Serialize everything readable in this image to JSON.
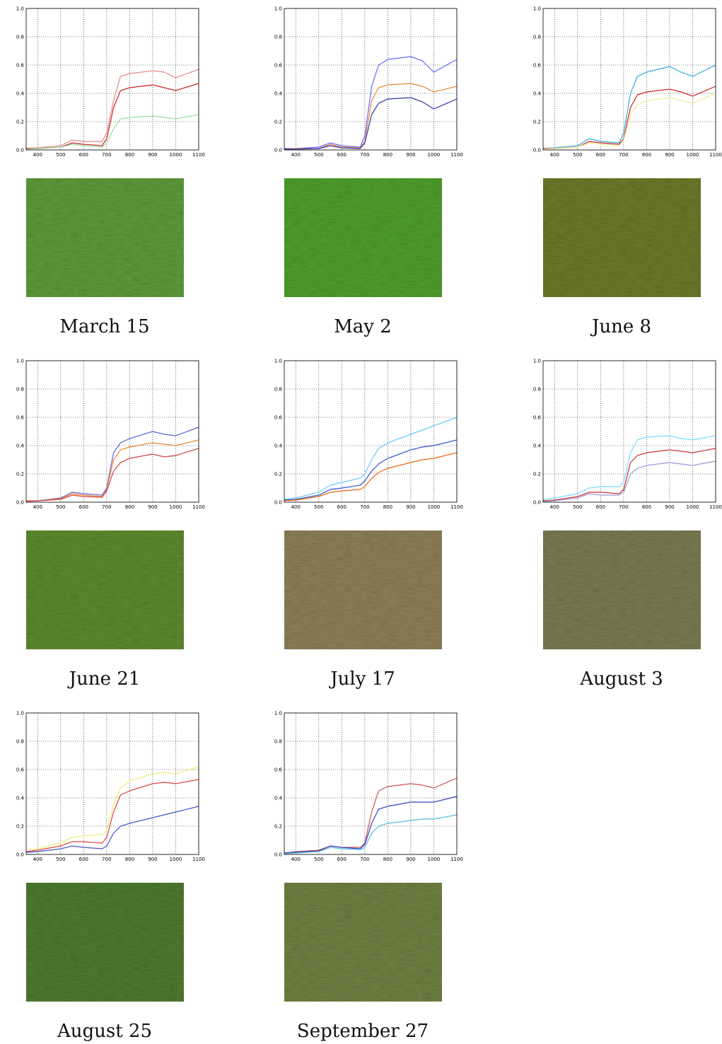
{
  "chart_data": [
    {
      "type": "line",
      "caption": "March 15",
      "x": [
        350,
        400,
        500,
        550,
        600,
        680,
        700,
        730,
        760,
        800,
        900,
        950,
        1000,
        1100
      ],
      "xlim": [
        350,
        1100
      ],
      "ylim": [
        0,
        1
      ],
      "xticks": [
        400,
        500,
        600,
        700,
        800,
        900,
        1000,
        1100
      ],
      "yticks": [
        {
          "value": 0,
          "label": "0.0"
        },
        0.2,
        0.4,
        0.6,
        0.8,
        {
          "value": 1,
          "label": "1.0"
        }
      ],
      "grid": true,
      "series": [
        {
          "color": "#e88888",
          "values": [
            0.01,
            0.015,
            0.03,
            0.07,
            0.06,
            0.06,
            0.12,
            0.35,
            0.52,
            0.54,
            0.56,
            0.55,
            0.51,
            0.57
          ]
        },
        {
          "color": "#cc2222",
          "values": [
            0.01,
            0.01,
            0.02,
            0.05,
            0.04,
            0.03,
            0.08,
            0.3,
            0.42,
            0.44,
            0.46,
            0.44,
            0.42,
            0.47
          ]
        },
        {
          "color": "#99dd99",
          "values": [
            0.005,
            0.01,
            0.02,
            0.04,
            0.03,
            0.02,
            0.05,
            0.15,
            0.22,
            0.23,
            0.24,
            0.23,
            0.22,
            0.25
          ]
        }
      ]
    },
    {
      "type": "line",
      "caption": "May 2",
      "x": [
        350,
        400,
        500,
        550,
        600,
        680,
        700,
        730,
        760,
        800,
        900,
        950,
        1000,
        1100
      ],
      "xlim": [
        350,
        1100
      ],
      "ylim": [
        0,
        1
      ],
      "xticks": [
        400,
        500,
        600,
        700,
        800,
        900,
        1000,
        1100
      ],
      "yticks": [
        {
          "value": 0,
          "label": "0.0"
        },
        0.2,
        0.4,
        0.6,
        0.8,
        {
          "value": 1,
          "label": "1.0"
        }
      ],
      "grid": true,
      "series": [
        {
          "color": "#6666ff",
          "values": [
            0.01,
            0.01,
            0.02,
            0.05,
            0.03,
            0.02,
            0.1,
            0.45,
            0.6,
            0.64,
            0.66,
            0.63,
            0.55,
            0.64
          ]
        },
        {
          "color": "#ee8833",
          "values": [
            0.005,
            0.01,
            0.01,
            0.04,
            0.02,
            0.015,
            0.06,
            0.35,
            0.44,
            0.46,
            0.47,
            0.45,
            0.41,
            0.45
          ]
        },
        {
          "color": "#3333aa",
          "values": [
            0.005,
            0.005,
            0.01,
            0.03,
            0.015,
            0.01,
            0.05,
            0.25,
            0.33,
            0.36,
            0.37,
            0.34,
            0.29,
            0.36
          ]
        }
      ]
    },
    {
      "type": "line",
      "caption": "June 8",
      "x": [
        350,
        400,
        500,
        550,
        600,
        680,
        700,
        730,
        760,
        800,
        900,
        950,
        1000,
        1100
      ],
      "xlim": [
        350,
        1100
      ],
      "ylim": [
        0,
        1
      ],
      "xticks": [
        400,
        500,
        600,
        700,
        800,
        900,
        1000,
        1100
      ],
      "yticks": [
        {
          "value": 0,
          "label": "0.0"
        },
        0.2,
        0.4,
        0.6,
        0.8,
        {
          "value": 1,
          "label": "1.0"
        }
      ],
      "grid": true,
      "series": [
        {
          "color": "#33aadd",
          "values": [
            0.01,
            0.015,
            0.03,
            0.08,
            0.06,
            0.05,
            0.12,
            0.4,
            0.52,
            0.55,
            0.59,
            0.55,
            0.52,
            0.6
          ]
        },
        {
          "color": "#cc2222",
          "values": [
            0.01,
            0.01,
            0.02,
            0.06,
            0.05,
            0.04,
            0.08,
            0.3,
            0.39,
            0.41,
            0.43,
            0.41,
            0.38,
            0.45
          ]
        },
        {
          "color": "#eeee99",
          "values": [
            0.005,
            0.01,
            0.02,
            0.05,
            0.04,
            0.03,
            0.07,
            0.25,
            0.32,
            0.35,
            0.37,
            0.35,
            0.33,
            0.4
          ]
        }
      ]
    },
    {
      "type": "line",
      "caption": "June 21",
      "x": [
        350,
        400,
        500,
        550,
        600,
        680,
        700,
        730,
        760,
        800,
        900,
        950,
        1000,
        1100
      ],
      "xlim": [
        350,
        1100
      ],
      "ylim": [
        0,
        1
      ],
      "xticks": [
        400,
        500,
        600,
        700,
        800,
        900,
        1000,
        1100
      ],
      "yticks": [
        {
          "value": 0,
          "label": "0.0"
        },
        0.2,
        0.4,
        0.6,
        0.8,
        {
          "value": 1,
          "label": "1.0"
        }
      ],
      "grid": true,
      "series": [
        {
          "color": "#5566dd",
          "values": [
            0.01,
            0.01,
            0.03,
            0.07,
            0.06,
            0.05,
            0.1,
            0.35,
            0.42,
            0.45,
            0.5,
            0.48,
            0.47,
            0.53
          ]
        },
        {
          "color": "#ee8833",
          "values": [
            0.01,
            0.01,
            0.025,
            0.06,
            0.05,
            0.04,
            0.09,
            0.3,
            0.37,
            0.39,
            0.42,
            0.41,
            0.4,
            0.44
          ]
        },
        {
          "color": "#cc4444",
          "values": [
            0.005,
            0.01,
            0.02,
            0.05,
            0.04,
            0.035,
            0.08,
            0.22,
            0.28,
            0.31,
            0.34,
            0.32,
            0.33,
            0.38
          ]
        }
      ]
    },
    {
      "type": "line",
      "caption": "July 17",
      "x": [
        350,
        400,
        500,
        550,
        600,
        680,
        700,
        730,
        760,
        800,
        900,
        950,
        1000,
        1100
      ],
      "xlim": [
        350,
        1100
      ],
      "ylim": [
        0,
        1
      ],
      "xticks": [
        400,
        500,
        600,
        700,
        800,
        900,
        1000,
        1100
      ],
      "yticks": [
        {
          "value": 0,
          "label": "0.0"
        },
        0.2,
        0.4,
        0.6,
        0.8,
        {
          "value": 1,
          "label": "1.0"
        }
      ],
      "grid": true,
      "series": [
        {
          "color": "#66ccff",
          "values": [
            0.02,
            0.03,
            0.07,
            0.12,
            0.14,
            0.17,
            0.2,
            0.3,
            0.38,
            0.42,
            0.48,
            0.51,
            0.54,
            0.6
          ]
        },
        {
          "color": "#3355cc",
          "values": [
            0.015,
            0.02,
            0.05,
            0.09,
            0.1,
            0.12,
            0.15,
            0.22,
            0.27,
            0.31,
            0.37,
            0.39,
            0.4,
            0.44
          ]
        },
        {
          "color": "#ee6611",
          "values": [
            0.01,
            0.015,
            0.04,
            0.07,
            0.08,
            0.09,
            0.11,
            0.17,
            0.21,
            0.24,
            0.28,
            0.3,
            0.31,
            0.35
          ]
        }
      ]
    },
    {
      "type": "line",
      "caption": "August 3",
      "x": [
        350,
        400,
        500,
        550,
        600,
        680,
        700,
        730,
        760,
        800,
        900,
        950,
        1000,
        1100
      ],
      "xlim": [
        350,
        1100
      ],
      "ylim": [
        0,
        1
      ],
      "xticks": [
        400,
        500,
        600,
        700,
        800,
        900,
        1000,
        1100
      ],
      "yticks": [
        {
          "value": 0,
          "label": "0.0"
        },
        0.2,
        0.4,
        0.6,
        0.8,
        {
          "value": 1,
          "label": "1.0"
        }
      ],
      "grid": true,
      "series": [
        {
          "color": "#77ddff",
          "values": [
            0.02,
            0.03,
            0.06,
            0.1,
            0.11,
            0.11,
            0.14,
            0.35,
            0.44,
            0.46,
            0.47,
            0.45,
            0.44,
            0.47
          ]
        },
        {
          "color": "#cc3333",
          "values": [
            0.01,
            0.015,
            0.04,
            0.07,
            0.07,
            0.06,
            0.09,
            0.28,
            0.33,
            0.35,
            0.37,
            0.36,
            0.35,
            0.38
          ]
        },
        {
          "color": "#9999dd",
          "values": [
            0.005,
            0.01,
            0.03,
            0.06,
            0.05,
            0.05,
            0.07,
            0.2,
            0.24,
            0.26,
            0.28,
            0.27,
            0.26,
            0.29
          ]
        }
      ]
    },
    {
      "type": "line",
      "caption": "August 25",
      "x": [
        350,
        400,
        500,
        550,
        600,
        680,
        700,
        730,
        760,
        800,
        900,
        950,
        1000,
        1100
      ],
      "xlim": [
        350,
        1100
      ],
      "ylim": [
        0,
        1
      ],
      "xticks": [
        400,
        500,
        600,
        700,
        800,
        900,
        1000,
        1100
      ],
      "yticks": [
        {
          "value": 0,
          "label": "0.0"
        },
        0.2,
        0.4,
        0.6,
        0.8,
        {
          "value": 1,
          "label": "1.0"
        }
      ],
      "grid": true,
      "series": [
        {
          "color": "#eeee77",
          "values": [
            0.03,
            0.04,
            0.08,
            0.12,
            0.13,
            0.14,
            0.17,
            0.35,
            0.47,
            0.52,
            0.57,
            0.58,
            0.57,
            0.62
          ]
        },
        {
          "color": "#dd4444",
          "values": [
            0.02,
            0.03,
            0.06,
            0.09,
            0.09,
            0.08,
            0.12,
            0.3,
            0.42,
            0.45,
            0.5,
            0.51,
            0.5,
            0.53
          ]
        },
        {
          "color": "#4455cc",
          "values": [
            0.015,
            0.02,
            0.04,
            0.06,
            0.05,
            0.04,
            0.06,
            0.15,
            0.2,
            0.22,
            0.26,
            0.28,
            0.3,
            0.34
          ]
        }
      ]
    },
    {
      "type": "line",
      "caption": "September 27",
      "x": [
        350,
        400,
        500,
        550,
        600,
        680,
        700,
        730,
        760,
        800,
        900,
        950,
        1000,
        1100
      ],
      "xlim": [
        350,
        1100
      ],
      "ylim": [
        0,
        1
      ],
      "xticks": [
        400,
        500,
        600,
        700,
        800,
        900,
        1000,
        1100
      ],
      "yticks": [
        {
          "value": 0,
          "label": "0.0"
        },
        0.2,
        0.4,
        0.6,
        0.8,
        {
          "value": 1,
          "label": "1.0"
        }
      ],
      "grid": true,
      "series": [
        {
          "color": "#cc5555",
          "values": [
            0.01,
            0.02,
            0.03,
            0.06,
            0.05,
            0.05,
            0.08,
            0.3,
            0.45,
            0.48,
            0.5,
            0.49,
            0.47,
            0.54
          ]
        },
        {
          "color": "#3344bb",
          "values": [
            0.01,
            0.015,
            0.025,
            0.06,
            0.05,
            0.04,
            0.07,
            0.22,
            0.32,
            0.34,
            0.37,
            0.37,
            0.37,
            0.41
          ]
        },
        {
          "color": "#55bbdd",
          "values": [
            0.005,
            0.01,
            0.02,
            0.05,
            0.04,
            0.035,
            0.05,
            0.15,
            0.2,
            0.22,
            0.24,
            0.25,
            0.25,
            0.28
          ]
        }
      ]
    }
  ]
}
